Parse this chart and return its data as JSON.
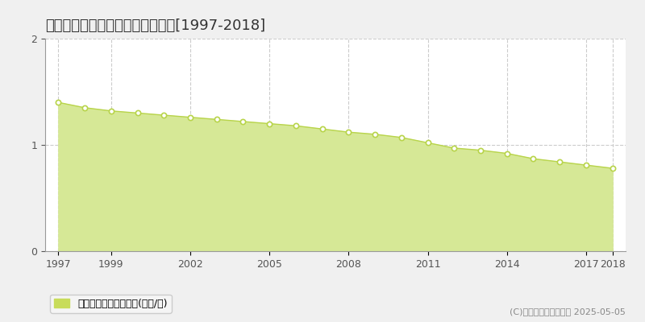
{
  "title": "最上郡黦川村庭月　基準地価推移[1997-2018]",
  "years": [
    1997,
    1998,
    1999,
    2000,
    2001,
    2002,
    2003,
    2004,
    2005,
    2006,
    2007,
    2008,
    2009,
    2010,
    2011,
    2012,
    2013,
    2014,
    2015,
    2016,
    2017,
    2018
  ],
  "values": [
    1.4,
    1.35,
    1.32,
    1.3,
    1.28,
    1.26,
    1.24,
    1.22,
    1.2,
    1.18,
    1.15,
    1.12,
    1.1,
    1.07,
    1.02,
    0.97,
    0.95,
    0.92,
    0.87,
    0.84,
    0.81,
    0.78
  ],
  "line_color": "#b8d44a",
  "fill_color": "#d6e896",
  "marker_facecolor": "#ffffff",
  "marker_edgecolor": "#b8d44a",
  "ylim": [
    0,
    2
  ],
  "yticks": [
    0,
    1,
    2
  ],
  "xticks": [
    1997,
    1999,
    2002,
    2005,
    2008,
    2011,
    2014,
    2017,
    2018
  ],
  "grid_color": "#cccccc",
  "plot_bg_color": "#ffffff",
  "fig_bg_color": "#f0f0f0",
  "legend_label": "基準地価　平均坪単価(万円/坪)",
  "legend_square_color": "#c8dc5a",
  "copyright_text": "(C)土地価格ドットコム 2025-05-05",
  "title_fontsize": 13,
  "tick_fontsize": 9,
  "legend_fontsize": 9,
  "copyright_fontsize": 8
}
